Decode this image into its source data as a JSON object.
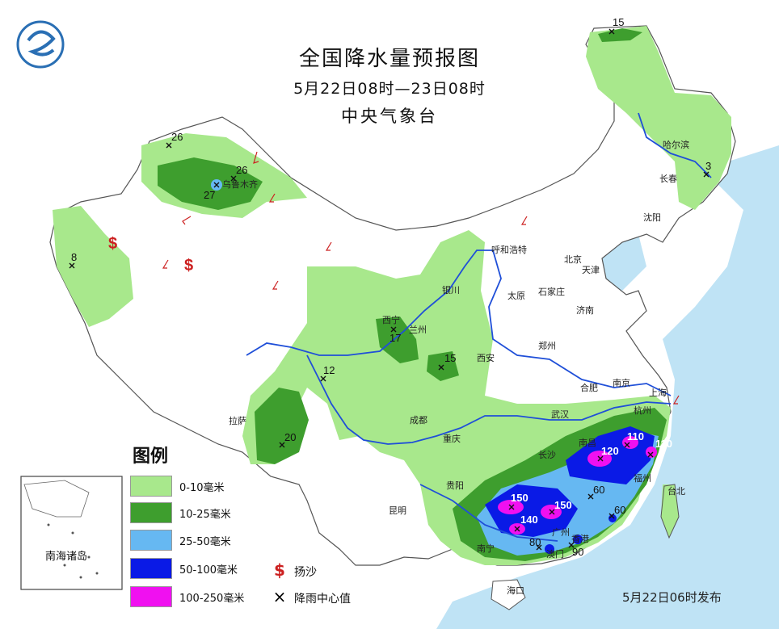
{
  "title": "全国降水量预报图",
  "time_range": "5月22日08时—23日08时",
  "issuer": "中央气象台",
  "issue_time": "5月22日06时发布",
  "legend": {
    "title": "图例",
    "items": [
      {
        "label": "0-10毫米",
        "color": "#a8e88c"
      },
      {
        "label": "10-25毫米",
        "color": "#3e9e2e"
      },
      {
        "label": "25-50毫米",
        "color": "#66b8f2"
      },
      {
        "label": "50-100毫米",
        "color": "#0a1ae6"
      },
      {
        "label": "100-250毫米",
        "color": "#f010f0"
      }
    ],
    "symbols": [
      {
        "label": "扬沙",
        "glyph": "$",
        "icon": "sand-dust-icon",
        "color": "#cc2020"
      },
      {
        "label": "降雨中心值",
        "glyph": "×",
        "icon": "rain-center-icon",
        "color": "#111111"
      }
    ]
  },
  "inset_label": "南海诸岛",
  "cities": [
    "哈尔滨",
    "长春",
    "沈阳",
    "呼和浩特",
    "北京",
    "天津",
    "石家庄",
    "太原",
    "济南",
    "银川",
    "西宁",
    "兰州",
    "西安",
    "郑州",
    "合肥",
    "南京",
    "上海",
    "杭州",
    "武汉",
    "南昌",
    "福州",
    "台北",
    "长沙",
    "重庆",
    "成都",
    "贵阳",
    "昆明",
    "南宁",
    "广州",
    "香港",
    "澳门",
    "海口",
    "拉萨",
    "乌鲁木齐"
  ],
  "rain_centers": [
    "15",
    "26",
    "26",
    "27",
    "3",
    "8",
    "17",
    "15",
    "12",
    "20",
    "110",
    "120",
    "110",
    "150",
    "150",
    "140",
    "60",
    "60",
    "80",
    "90"
  ]
}
